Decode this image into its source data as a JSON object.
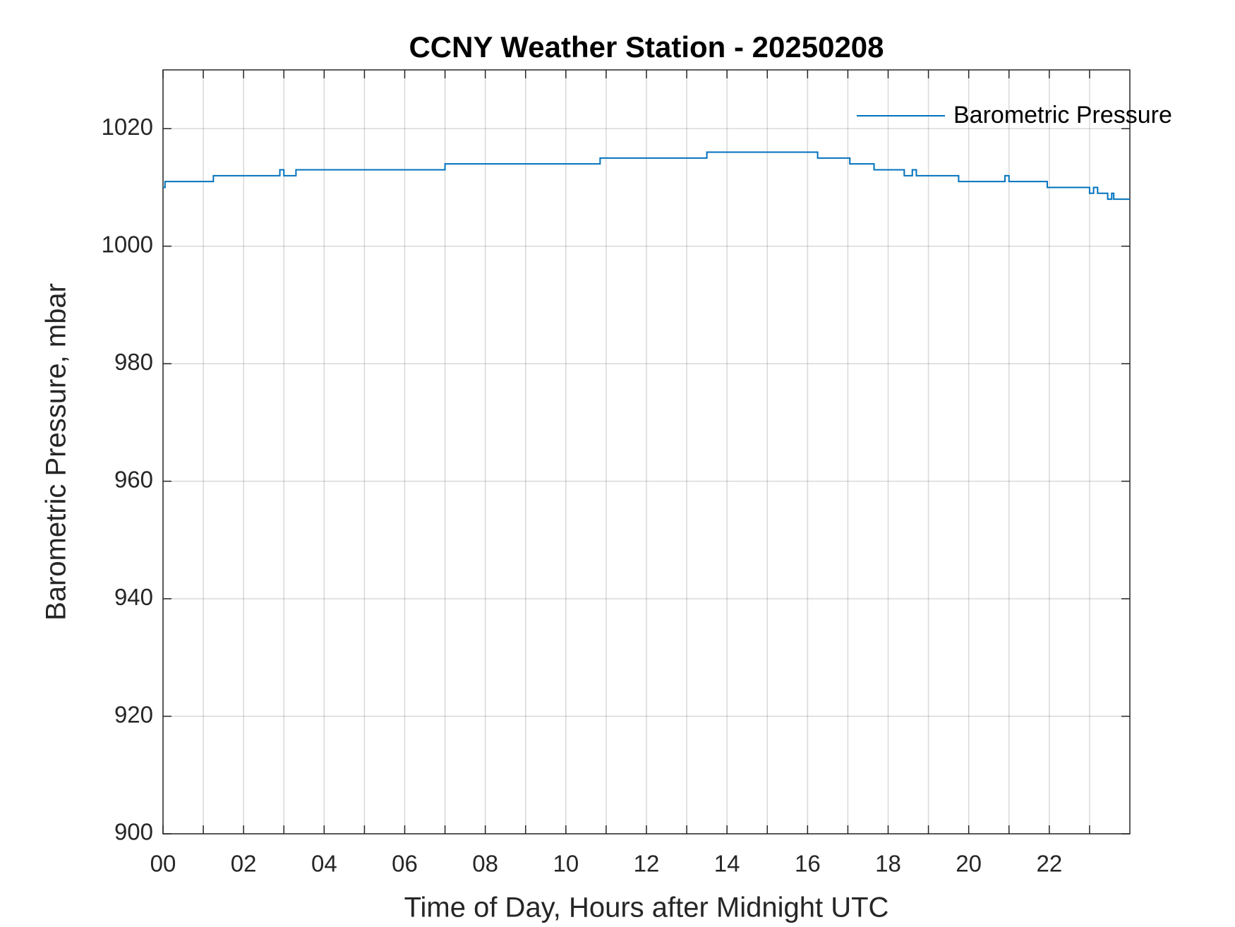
{
  "chart_data": {
    "type": "line",
    "title": "CCNY Weather Station - 20250208",
    "x_label": "Time of Day, Hours after Midnight UTC",
    "y_label": "Barometric Pressure, mbar",
    "xlim": [
      0,
      24
    ],
    "ylim": [
      900,
      1030
    ],
    "xticks": [
      {
        "value": 0,
        "label": "00"
      },
      {
        "value": 2,
        "label": "02"
      },
      {
        "value": 4,
        "label": "04"
      },
      {
        "value": 6,
        "label": "06"
      },
      {
        "value": 8,
        "label": "08"
      },
      {
        "value": 10,
        "label": "10"
      },
      {
        "value": 12,
        "label": "12"
      },
      {
        "value": 14,
        "label": "14"
      },
      {
        "value": 16,
        "label": "16"
      },
      {
        "value": 18,
        "label": "18"
      },
      {
        "value": 20,
        "label": "20"
      },
      {
        "value": 22,
        "label": "22"
      }
    ],
    "xminorticks": [
      1,
      3,
      5,
      7,
      9,
      11,
      13,
      15,
      17,
      19,
      21,
      23
    ],
    "yticks": [
      900,
      920,
      940,
      960,
      980,
      1000,
      1020
    ],
    "grid": true,
    "legend": "upper right",
    "x": [
      0,
      0.05,
      0.05,
      1.25,
      1.25,
      2.9,
      2.9,
      3.0,
      3.0,
      3.3,
      3.3,
      7.0,
      7.0,
      10.85,
      10.85,
      13.5,
      13.5,
      16.25,
      16.25,
      17.05,
      17.05,
      17.65,
      17.65,
      18.4,
      18.4,
      18.6,
      18.6,
      18.7,
      18.7,
      19.75,
      19.75,
      20.9,
      20.9,
      21.0,
      21.0,
      21.95,
      21.95,
      23.0,
      23.0,
      23.1,
      23.1,
      23.2,
      23.2,
      23.45,
      23.45,
      23.55,
      23.55,
      23.6,
      23.6,
      24
    ],
    "series": [
      {
        "name": "Barometric Pressure",
        "color": "#0072bd",
        "values": [
          1010,
          1010,
          1011,
          1011,
          1012,
          1012,
          1013,
          1013,
          1012,
          1012,
          1013,
          1013,
          1014,
          1014,
          1015,
          1015,
          1016,
          1016,
          1015,
          1015,
          1014,
          1014,
          1013,
          1013,
          1012,
          1012,
          1013,
          1013,
          1012,
          1012,
          1011,
          1011,
          1012,
          1012,
          1011,
          1011,
          1010,
          1010,
          1009,
          1009,
          1010,
          1010,
          1009,
          1009,
          1008,
          1008,
          1009,
          1009,
          1008,
          1008
        ]
      }
    ]
  }
}
